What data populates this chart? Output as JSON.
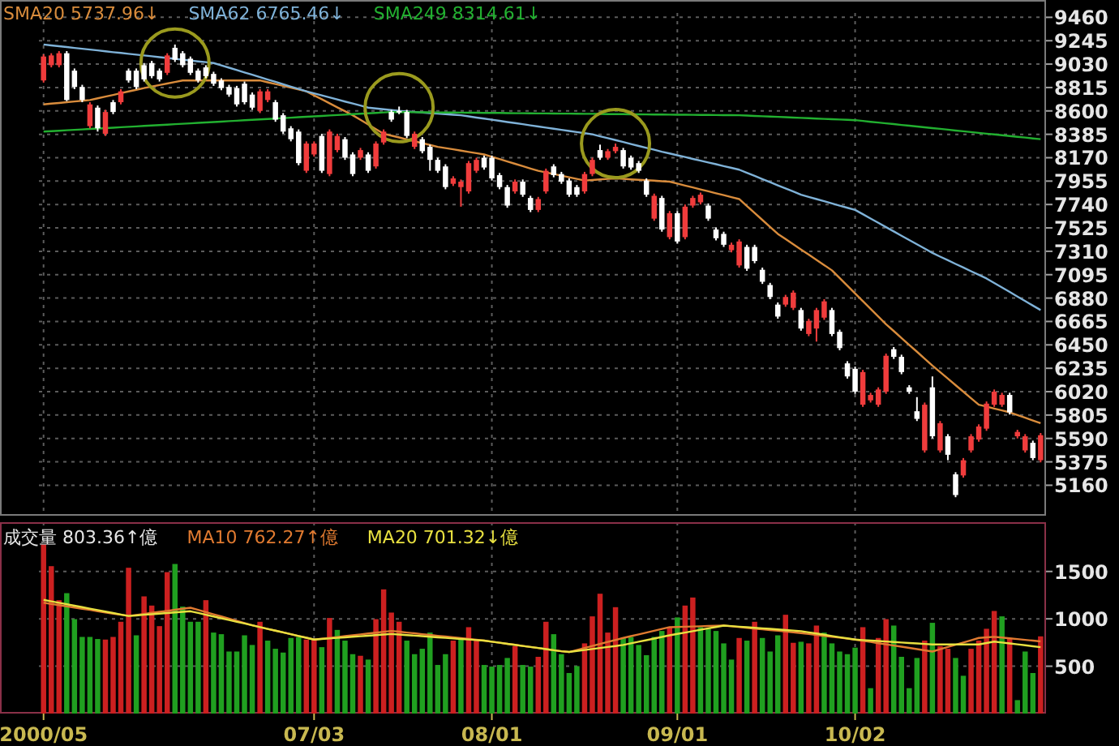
{
  "chart_data": [
    {
      "type": "candlestick",
      "tick_labels": "y",
      "grid": true,
      "legend": "top left",
      "ylim": [
        4880,
        9500
      ],
      "yticks": [
        5160,
        5375,
        5590,
        5805,
        6020,
        6235,
        6450,
        6665,
        6880,
        7095,
        7310,
        7525,
        7740,
        7955,
        8170,
        8385,
        8600,
        8815,
        9030,
        9245,
        9460
      ],
      "categories": [
        null,
        null,
        null,
        null,
        null,
        null,
        null,
        null,
        null,
        null,
        null,
        null,
        null,
        null,
        null,
        null,
        null,
        null,
        null,
        null,
        null,
        null,
        null,
        null,
        null,
        null,
        null,
        null,
        null,
        null,
        null,
        null,
        null,
        null,
        null,
        null,
        null,
        null,
        null,
        null,
        null,
        null,
        null,
        null,
        null,
        null,
        null,
        null,
        null,
        null,
        null,
        null,
        null,
        null,
        null,
        null,
        null,
        null,
        null,
        null,
        null,
        null,
        null,
        null,
        null,
        null,
        null,
        null,
        null,
        null,
        null,
        null,
        null,
        null,
        null,
        null,
        null,
        null,
        null,
        null,
        null,
        null,
        null,
        null,
        null,
        null,
        null,
        null,
        null,
        null,
        null,
        null,
        null,
        null,
        null,
        null,
        null,
        null,
        null,
        null,
        null,
        null,
        null,
        null,
        null,
        null,
        null,
        null,
        null,
        null,
        null,
        null,
        null,
        null,
        null,
        null,
        null,
        null,
        null,
        null,
        null,
        null,
        null,
        null,
        null,
        null,
        null,
        null,
        null,
        null
      ],
      "ohlc": [
        [
          8880,
          9120,
          8860,
          9100
        ],
        [
          9020,
          9130,
          9000,
          9110
        ],
        [
          9020,
          9150,
          9000,
          9130
        ],
        [
          9130,
          9150,
          8690,
          8700
        ],
        [
          8970,
          8990,
          8800,
          8820
        ],
        [
          8820,
          8840,
          8680,
          8700
        ],
        [
          8460,
          8680,
          8440,
          8660
        ],
        [
          8630,
          8650,
          8410,
          8440
        ],
        [
          8390,
          8610,
          8370,
          8590
        ],
        [
          8680,
          8700,
          8570,
          8590
        ],
        [
          8680,
          8800,
          8660,
          8780
        ],
        [
          8970,
          8990,
          8860,
          8880
        ],
        [
          8970,
          8990,
          8800,
          8820
        ],
        [
          9020,
          9040,
          8870,
          8890
        ],
        [
          9040,
          9060,
          8900,
          8920
        ],
        [
          8970,
          8990,
          8870,
          8890
        ],
        [
          8950,
          9130,
          8930,
          9110
        ],
        [
          9180,
          9210,
          9050,
          9070
        ],
        [
          9130,
          9150,
          9000,
          9020
        ],
        [
          9080,
          9100,
          8930,
          8950
        ],
        [
          8970,
          8990,
          8860,
          8880
        ],
        [
          9000,
          9020,
          8900,
          8920
        ],
        [
          8940,
          8960,
          8830,
          8850
        ],
        [
          8880,
          8900,
          8790,
          8810
        ],
        [
          8820,
          8840,
          8730,
          8750
        ],
        [
          8810,
          8830,
          8640,
          8660
        ],
        [
          8850,
          8870,
          8660,
          8680
        ],
        [
          8750,
          8770,
          8610,
          8630
        ],
        [
          8600,
          8800,
          8580,
          8780
        ],
        [
          8700,
          8800,
          8680,
          8780
        ],
        [
          8680,
          8700,
          8500,
          8520
        ],
        [
          8560,
          8580,
          8390,
          8410
        ],
        [
          8440,
          8460,
          8320,
          8340
        ],
        [
          8410,
          8430,
          8100,
          8120
        ],
        [
          8050,
          8320,
          8030,
          8300
        ],
        [
          8200,
          8320,
          8180,
          8300
        ],
        [
          8370,
          8390,
          8030,
          8050
        ],
        [
          8020,
          8430,
          8000,
          8410
        ],
        [
          8240,
          8390,
          8220,
          8370
        ],
        [
          8340,
          8360,
          8150,
          8170
        ],
        [
          8200,
          8220,
          8000,
          8020
        ],
        [
          8170,
          8260,
          8150,
          8240
        ],
        [
          8200,
          8220,
          8030,
          8050
        ],
        [
          8090,
          8320,
          8070,
          8300
        ],
        [
          8310,
          8430,
          8290,
          8410
        ],
        [
          8590,
          8610,
          8500,
          8520
        ],
        [
          8600,
          8640,
          8570,
          8590
        ],
        [
          8590,
          8610,
          8350,
          8370
        ],
        [
          8270,
          8410,
          8250,
          8390
        ],
        [
          8340,
          8360,
          8210,
          8230
        ],
        [
          8270,
          8290,
          8050,
          8150
        ],
        [
          8150,
          8170,
          8030,
          8050
        ],
        [
          8090,
          8110,
          7880,
          7900
        ],
        [
          7930,
          8000,
          7910,
          7980
        ],
        [
          7900,
          7970,
          7720,
          7950
        ],
        [
          7860,
          8140,
          7840,
          8120
        ],
        [
          8050,
          8170,
          8030,
          8150
        ],
        [
          8170,
          8190,
          8060,
          8080
        ],
        [
          8170,
          8190,
          7960,
          7980
        ],
        [
          8010,
          8030,
          7880,
          7900
        ],
        [
          7900,
          7920,
          7710,
          7730
        ],
        [
          7860,
          7970,
          7840,
          7950
        ],
        [
          7950,
          7970,
          7810,
          7830
        ],
        [
          7800,
          7820,
          7670,
          7690
        ],
        [
          7690,
          7810,
          7670,
          7790
        ],
        [
          7860,
          8070,
          7840,
          8050
        ],
        [
          8090,
          8110,
          7990,
          8010
        ],
        [
          8020,
          8040,
          7930,
          7950
        ],
        [
          7960,
          7980,
          7810,
          7830
        ],
        [
          7900,
          7920,
          7810,
          7830
        ],
        [
          7860,
          8040,
          7840,
          8020
        ],
        [
          8020,
          8170,
          8000,
          8150
        ],
        [
          8240,
          8290,
          8150,
          8170
        ],
        [
          8170,
          8250,
          8150,
          8230
        ],
        [
          8230,
          8300,
          8210,
          8270
        ],
        [
          8240,
          8260,
          8070,
          8090
        ],
        [
          8170,
          8190,
          8060,
          8080
        ],
        [
          8120,
          8140,
          8030,
          8050
        ],
        [
          7960,
          7980,
          7810,
          7830
        ],
        [
          7610,
          7840,
          7590,
          7820
        ],
        [
          7800,
          7820,
          7490,
          7510
        ],
        [
          7440,
          7680,
          7420,
          7660
        ],
        [
          7660,
          7680,
          7380,
          7400
        ],
        [
          7440,
          7740,
          7420,
          7720
        ],
        [
          7730,
          7820,
          7710,
          7800
        ],
        [
          7760,
          7850,
          7740,
          7830
        ],
        [
          7730,
          7750,
          7590,
          7610
        ],
        [
          7510,
          7530,
          7410,
          7430
        ],
        [
          7470,
          7490,
          7350,
          7370
        ],
        [
          7320,
          7390,
          7300,
          7370
        ],
        [
          7180,
          7420,
          7160,
          7400
        ],
        [
          7350,
          7370,
          7130,
          7150
        ],
        [
          7350,
          7370,
          7200,
          7220
        ],
        [
          7140,
          7160,
          7010,
          7030
        ],
        [
          7000,
          7020,
          6870,
          6890
        ],
        [
          6820,
          6840,
          6690,
          6710
        ],
        [
          6820,
          6910,
          6800,
          6890
        ],
        [
          6790,
          6950,
          6770,
          6930
        ],
        [
          6770,
          6790,
          6580,
          6600
        ],
        [
          6550,
          6690,
          6530,
          6670
        ],
        [
          6600,
          6790,
          6480,
          6770
        ],
        [
          6700,
          6870,
          6680,
          6850
        ],
        [
          6770,
          6790,
          6530,
          6550
        ],
        [
          6570,
          6590,
          6400,
          6420
        ],
        [
          6280,
          6300,
          6140,
          6160
        ],
        [
          6230,
          6250,
          6000,
          6020
        ],
        [
          5900,
          6220,
          5880,
          6200
        ],
        [
          5940,
          6010,
          5920,
          5990
        ],
        [
          5900,
          6060,
          5880,
          6040
        ],
        [
          6020,
          6370,
          6000,
          6350
        ],
        [
          6410,
          6430,
          6320,
          6340
        ],
        [
          6340,
          6360,
          6180,
          6200
        ],
        [
          6060,
          6080,
          6000,
          6020
        ],
        [
          5840,
          5970,
          5750,
          5770
        ],
        [
          5480,
          5920,
          5460,
          5900
        ],
        [
          6060,
          6160,
          5590,
          5610
        ],
        [
          5480,
          5750,
          5460,
          5730
        ],
        [
          5610,
          5630,
          5390,
          5440
        ],
        [
          5260,
          5280,
          5050,
          5070
        ],
        [
          5250,
          5410,
          5230,
          5390
        ],
        [
          5480,
          5630,
          5460,
          5610
        ],
        [
          5580,
          5720,
          5560,
          5700
        ],
        [
          5680,
          5930,
          5660,
          5910
        ],
        [
          5900,
          6040,
          5880,
          6020
        ],
        [
          5900,
          6010,
          5880,
          5990
        ],
        [
          5990,
          6010,
          5810,
          5830
        ],
        [
          5610,
          5670,
          5590,
          5650
        ],
        [
          5480,
          5630,
          5460,
          5610
        ],
        [
          5550,
          5570,
          5390,
          5410
        ],
        [
          5390,
          5640,
          5370,
          5620
        ]
      ],
      "colors": [
        "#f03c3c",
        "#f03c3c",
        "#f03c3c",
        "#ffffff",
        "#ffffff",
        "#ffffff",
        "#f03c3c",
        "#ffffff",
        "#f03c3c",
        "#ffffff",
        "#f03c3c",
        "#ffffff",
        "#ffffff",
        "#ffffff",
        "#ffffff",
        "#ffffff",
        "#f03c3c",
        "#ffffff",
        "#ffffff",
        "#ffffff",
        "#ffffff",
        "#ffffff",
        "#ffffff",
        "#ffffff",
        "#ffffff",
        "#ffffff",
        "#ffffff",
        "#ffffff",
        "#f03c3c",
        "#f03c3c",
        "#ffffff",
        "#ffffff",
        "#ffffff",
        "#ffffff",
        "#f03c3c",
        "#f03c3c",
        "#ffffff",
        "#f03c3c",
        "#f03c3c",
        "#ffffff",
        "#ffffff",
        "#f03c3c",
        "#ffffff",
        "#f03c3c",
        "#f03c3c",
        "#ffffff",
        "#ffffff",
        "#ffffff",
        "#f03c3c",
        "#ffffff",
        "#ffffff",
        "#ffffff",
        "#ffffff",
        "#f03c3c",
        "#f03c3c",
        "#f03c3c",
        "#f03c3c",
        "#ffffff",
        "#ffffff",
        "#ffffff",
        "#ffffff",
        "#f03c3c",
        "#ffffff",
        "#ffffff",
        "#f03c3c",
        "#f03c3c",
        "#ffffff",
        "#ffffff",
        "#ffffff",
        "#ffffff",
        "#f03c3c",
        "#f03c3c",
        "#ffffff",
        "#f03c3c",
        "#f03c3c",
        "#ffffff",
        "#ffffff",
        "#ffffff",
        "#ffffff",
        "#f03c3c",
        "#ffffff",
        "#f03c3c",
        "#ffffff",
        "#f03c3c",
        "#f03c3c",
        "#f03c3c",
        "#ffffff",
        "#ffffff",
        "#ffffff",
        "#f03c3c",
        "#f03c3c",
        "#ffffff",
        "#ffffff",
        "#ffffff",
        "#ffffff",
        "#ffffff",
        "#f03c3c",
        "#f03c3c",
        "#ffffff",
        "#f03c3c",
        "#f03c3c",
        "#f03c3c",
        "#ffffff",
        "#ffffff",
        "#ffffff",
        "#ffffff",
        "#f03c3c",
        "#f03c3c",
        "#f03c3c",
        "#f03c3c",
        "#ffffff",
        "#ffffff",
        "#ffffff",
        "#ffffff",
        "#f03c3c",
        "#ffffff",
        "#f03c3c",
        "#ffffff",
        "#ffffff",
        "#f03c3c",
        "#f03c3c",
        "#f03c3c",
        "#f03c3c",
        "#f03c3c",
        "#f03c3c",
        "#ffffff",
        "#f03c3c",
        "#f03c3c",
        "#ffffff",
        "#f03c3c"
      ],
      "series": [
        {
          "name": "SMA20 5737.96↓",
          "type": "line",
          "color": "#d98c3c",
          "values": [
            8660,
            8667,
            8673,
            8680,
            8687,
            8693,
            8700,
            8716,
            8731,
            8747,
            8763,
            8779,
            8794,
            8810,
            8824,
            8838,
            8852,
            8866,
            8880,
            8880,
            8880,
            8880,
            8880,
            8880,
            8880,
            8880,
            8880,
            8880,
            8880,
            8863,
            8847,
            8830,
            8813,
            8797,
            8780,
            8743,
            8707,
            8670,
            8633,
            8597,
            8560,
            8518,
            8475,
            8433,
            8390,
            8373,
            8356,
            8339,
            8321,
            8304,
            8287,
            8270,
            8258,
            8247,
            8235,
            8223,
            8212,
            8200,
            8179,
            8157,
            8136,
            8114,
            8093,
            8071,
            8050,
            8035,
            8020,
            8005,
            7990,
            7975,
            7960,
            7965,
            7970,
            7975,
            7980,
            7976,
            7971,
            7967,
            7963,
            7959,
            7954,
            7950,
            7932,
            7914,
            7897,
            7879,
            7861,
            7843,
            7826,
            7808,
            7790,
            7726,
            7662,
            7598,
            7534,
            7470,
            7422,
            7374,
            7326,
            7279,
            7231,
            7183,
            7135,
            7064,
            6994,
            6923,
            6852,
            6781,
            6711,
            6640,
            6577,
            6513,
            6450,
            6387,
            6323,
            6260,
            6200,
            6140,
            6080,
            6020,
            5960,
            5900,
            5883,
            5865,
            5848,
            5830,
            5805,
            5780,
            5755,
            5730
          ]
        },
        {
          "name": "SMA62 6765.46↓",
          "type": "line",
          "color": "#7fb2d8",
          "values": [
            9210,
            9202,
            9195,
            9187,
            9179,
            9171,
            9164,
            9156,
            9148,
            9140,
            9133,
            9125,
            9117,
            9110,
            9102,
            9094,
            9086,
            9079,
            9071,
            9063,
            9055,
            9048,
            9040,
            9018,
            8997,
            8975,
            8953,
            8932,
            8910,
            8888,
            8867,
            8845,
            8823,
            8802,
            8780,
            8761,
            8743,
            8724,
            8705,
            8686,
            8668,
            8649,
            8630,
            8623,
            8615,
            8608,
            8600,
            8595,
            8590,
            8585,
            8580,
            8575,
            8570,
            8565,
            8560,
            8550,
            8539,
            8529,
            8519,
            8509,
            8498,
            8488,
            8478,
            8467,
            8457,
            8447,
            8436,
            8426,
            8416,
            8406,
            8395,
            8385,
            8367,
            8349,
            8332,
            8314,
            8296,
            8278,
            8260,
            8243,
            8225,
            8209,
            8192,
            8176,
            8159,
            8143,
            8126,
            8110,
            8093,
            8077,
            8060,
            8031,
            8003,
            7974,
            7945,
            7916,
            7888,
            7859,
            7830,
            7810,
            7790,
            7770,
            7750,
            7730,
            7710,
            7690,
            7651,
            7611,
            7572,
            7532,
            7493,
            7453,
            7414,
            7374,
            7335,
            7295,
            7261,
            7228,
            7194,
            7161,
            7127,
            7094,
            7060,
            7019,
            6977,
            6936,
            6894,
            6853,
            6811,
            6770
          ]
        },
        {
          "name": "SMA249 8314.61↓",
          "type": "line",
          "color": "#22b030",
          "values": [
            8410,
            8414,
            8418,
            8422,
            8426,
            8430,
            8434,
            8438,
            8442,
            8446,
            8450,
            8454,
            8458,
            8462,
            8466,
            8470,
            8474,
            8478,
            8482,
            8486,
            8490,
            8494,
            8498,
            8502,
            8506,
            8510,
            8514,
            8518,
            8522,
            8526,
            8530,
            8534,
            8538,
            8542,
            8546,
            8550,
            8554,
            8558,
            8562,
            8566,
            8570,
            8574,
            8578,
            8582,
            8586,
            8590,
            8589,
            8589,
            8588,
            8587,
            8587,
            8586,
            8585,
            8585,
            8584,
            8583,
            8583,
            8582,
            8581,
            8581,
            8580,
            8579,
            8579,
            8578,
            8577,
            8577,
            8576,
            8575,
            8575,
            8574,
            8573,
            8573,
            8572,
            8571,
            8571,
            8570,
            8569,
            8569,
            8568,
            8567,
            8567,
            8566,
            8565,
            8565,
            8564,
            8563,
            8563,
            8562,
            8561,
            8561,
            8560,
            8557,
            8554,
            8551,
            8548,
            8545,
            8542,
            8539,
            8536,
            8533,
            8530,
            8527,
            8524,
            8521,
            8518,
            8515,
            8508,
            8500,
            8493,
            8486,
            8479,
            8471,
            8464,
            8457,
            8449,
            8442,
            8435,
            8428,
            8420,
            8413,
            8406,
            8398,
            8391,
            8384,
            8377,
            8369,
            8362,
            8355,
            8347,
            8340
          ]
        },
        {
          "type": "scatter",
          "marker": "circle",
          "color": "#9a9a1e",
          "values": [
            null,
            null,
            null,
            null,
            null,
            null,
            null,
            null,
            null,
            null,
            null,
            null,
            null,
            null,
            null,
            null,
            null,
            9040,
            null,
            null,
            null,
            null,
            null,
            null,
            null,
            null,
            null,
            null,
            null,
            null,
            null,
            null,
            null,
            null,
            null,
            null,
            null,
            null,
            null,
            null,
            null,
            null,
            null,
            null,
            null,
            null,
            8630,
            null,
            null,
            null,
            null,
            null,
            null,
            null,
            null,
            null,
            null,
            null,
            null,
            null,
            null,
            null,
            null,
            null,
            null,
            null,
            null,
            null,
            null,
            null,
            null,
            null,
            null,
            null,
            8300,
            null,
            null,
            null,
            null,
            null,
            null,
            null,
            null,
            null,
            null,
            null,
            null,
            null,
            null,
            null,
            null,
            null,
            null,
            null,
            null,
            null,
            null,
            null,
            null,
            null,
            null,
            null,
            null,
            null,
            null,
            null,
            null,
            null,
            null,
            null,
            null,
            null,
            null,
            null,
            null,
            null,
            null,
            null,
            null,
            null,
            null,
            null,
            null,
            null,
            null,
            null,
            null,
            null,
            null,
            null
          ]
        }
      ]
    },
    {
      "type": "bar",
      "grid": true,
      "legend": "top left",
      "ylim": [
        0,
        2020
      ],
      "yticks": [
        500,
        1000,
        1500
      ],
      "categories": [
        "2000/05",
        null,
        null,
        null,
        null,
        null,
        null,
        null,
        null,
        null,
        null,
        null,
        null,
        null,
        null,
        null,
        null,
        null,
        null,
        null,
        null,
        null,
        null,
        null,
        null,
        null,
        null,
        null,
        null,
        null,
        null,
        null,
        null,
        null,
        null,
        "07/03",
        null,
        null,
        null,
        null,
        null,
        null,
        null,
        null,
        null,
        null,
        null,
        null,
        null,
        null,
        null,
        null,
        null,
        null,
        null,
        null,
        null,
        null,
        "08/01",
        null,
        null,
        null,
        null,
        null,
        null,
        null,
        null,
        null,
        null,
        null,
        null,
        null,
        null,
        null,
        null,
        null,
        null,
        null,
        null,
        null,
        null,
        null,
        "09/01",
        null,
        null,
        null,
        null,
        null,
        null,
        null,
        null,
        null,
        null,
        null,
        null,
        null,
        null,
        null,
        null,
        null,
        null,
        null,
        null,
        null,
        null,
        "10/02",
        null,
        null,
        null,
        null,
        null,
        null,
        null,
        null,
        null,
        null,
        null,
        null,
        null,
        null,
        null,
        null,
        null,
        null,
        null,
        null,
        null,
        null,
        null,
        null
      ],
      "series": [
        {
          "name": "成交量 803.36↑億",
          "type": "bar",
          "values": [
            1784,
            1556,
            1197,
            1271,
            997,
            809,
            809,
            787,
            781,
            809,
            969,
            1539,
            826,
            1237,
            1140,
            923,
            1493,
            1579,
            1129,
            969,
            969,
            1197,
            855,
            838,
            655,
            655,
            826,
            724,
            969,
            770,
            684,
            644,
            798,
            809,
            781,
            781,
            701,
            1009,
            883,
            770,
            627,
            610,
            570,
            997,
            1311,
            1066,
            969,
            770,
            627,
            684,
            855,
            513,
            627,
            770,
            798,
            912,
            770,
            513,
            496,
            513,
            587,
            712,
            513,
            496,
            599,
            969,
            838,
            627,
            428,
            501,
            741,
            1026,
            1265,
            855,
            1123,
            798,
            809,
            724,
            616,
            809,
            872,
            912,
            1015,
            1140,
            1225,
            912,
            895,
            872,
            741,
            570,
            798,
            770,
            969,
            798,
            655,
            826,
            1043,
            747,
            758,
            741,
            929,
            855,
            741,
            655,
            627,
            696,
            912,
            268,
            798,
            997,
            929,
            599,
            268,
            587,
            770,
            958,
            712,
            684,
            587,
            399,
            684,
            770,
            895,
            1083,
            1026,
            798,
            142,
            655,
            428,
            815
          ],
          "colors": [
            "#cc2020",
            "#cc2020",
            "#cc2020",
            "#20a020",
            "#20a020",
            "#20a020",
            "#20a020",
            "#20a020",
            "#cc2020",
            "#cc2020",
            "#cc2020",
            "#cc2020",
            "#20a020",
            "#cc2020",
            "#cc2020",
            "#cc2020",
            "#cc2020",
            "#20a020",
            "#20a020",
            "#20a020",
            "#20a020",
            "#cc2020",
            "#20a020",
            "#20a020",
            "#20a020",
            "#20a020",
            "#20a020",
            "#20a020",
            "#cc2020",
            "#20a020",
            "#20a020",
            "#20a020",
            "#20a020",
            "#20a020",
            "#cc2020",
            "#cc2020",
            "#20a020",
            "#cc2020",
            "#20a020",
            "#20a020",
            "#20a020",
            "#cc2020",
            "#20a020",
            "#cc2020",
            "#cc2020",
            "#cc2020",
            "#cc2020",
            "#20a020",
            "#20a020",
            "#20a020",
            "#20a020",
            "#20a020",
            "#20a020",
            "#cc2020",
            "#20a020",
            "#cc2020",
            "#cc2020",
            "#20a020",
            "#20a020",
            "#20a020",
            "#20a020",
            "#cc2020",
            "#20a020",
            "#20a020",
            "#cc2020",
            "#cc2020",
            "#20a020",
            "#20a020",
            "#20a020",
            "#20a020",
            "#cc2020",
            "#cc2020",
            "#cc2020",
            "#cc2020",
            "#cc2020",
            "#20a020",
            "#20a020",
            "#20a020",
            "#20a020",
            "#20a020",
            "#20a020",
            "#cc2020",
            "#20a020",
            "#cc2020",
            "#cc2020",
            "#20a020",
            "#20a020",
            "#20a020",
            "#20a020",
            "#20a020",
            "#cc2020",
            "#20a020",
            "#cc2020",
            "#20a020",
            "#20a020",
            "#20a020",
            "#cc2020",
            "#cc2020",
            "#20a020",
            "#cc2020",
            "#cc2020",
            "#20a020",
            "#20a020",
            "#20a020",
            "#20a020",
            "#20a020",
            "#cc2020",
            "#20a020",
            "#cc2020",
            "#cc2020",
            "#20a020",
            "#20a020",
            "#20a020",
            "#20a020",
            "#cc2020",
            "#20a020",
            "#cc2020",
            "#cc2020",
            "#20a020",
            "#20a020",
            "#cc2020",
            "#cc2020",
            "#cc2020",
            "#cc2020",
            "#20a020",
            "#cc2020",
            "#20a020",
            "#20a020",
            "#20a020",
            "#cc2020"
          ]
        },
        {
          "name": "MA10 762.27↑億",
          "type": "line",
          "color": "#e07a30",
          "values": [
            1170,
            1157,
            1145,
            1132,
            1119,
            1106,
            1094,
            1081,
            1068,
            1055,
            1043,
            1030,
            1041,
            1052,
            1063,
            1074,
            1084,
            1095,
            1106,
            1117,
            1094,
            1071,
            1048,
            1025,
            1002,
            978,
            955,
            932,
            913,
            894,
            875,
            857,
            838,
            819,
            800,
            781,
            790,
            799,
            808,
            817,
            827,
            836,
            845,
            854,
            863,
            872,
            864,
            855,
            847,
            838,
            830,
            821,
            813,
            804,
            796,
            787,
            779,
            770,
            759,
            748,
            736,
            725,
            714,
            703,
            692,
            681,
            669,
            658,
            650,
            671,
            692,
            713,
            735,
            756,
            777,
            798,
            817,
            836,
            855,
            874,
            893,
            912,
            914,
            917,
            919,
            921,
            924,
            926,
            929,
            921,
            913,
            905,
            897,
            890,
            882,
            874,
            866,
            858,
            850,
            840,
            830,
            820,
            811,
            801,
            791,
            781,
            768,
            756,
            743,
            731,
            718,
            706,
            693,
            680,
            668,
            655,
            679,
            703,
            727,
            750,
            774,
            798,
            804,
            810,
            802,
            794,
            786,
            778,
            770,
            762
          ]
        },
        {
          "name": "MA20 701.32↓億",
          "type": "line",
          "color": "#e8e040",
          "values": [
            1200,
            1185,
            1169,
            1154,
            1138,
            1123,
            1107,
            1092,
            1076,
            1061,
            1045,
            1030,
            1036,
            1043,
            1049,
            1055,
            1061,
            1068,
            1074,
            1080,
            1062,
            1043,
            1025,
            1006,
            988,
            969,
            951,
            932,
            913,
            894,
            875,
            857,
            838,
            819,
            800,
            781,
            787,
            793,
            799,
            805,
            811,
            816,
            822,
            828,
            834,
            840,
            834,
            828,
            823,
            817,
            811,
            805,
            799,
            793,
            788,
            782,
            776,
            770,
            759,
            748,
            736,
            725,
            714,
            703,
            692,
            681,
            669,
            658,
            650,
            661,
            671,
            682,
            692,
            703,
            713,
            724,
            741,
            758,
            775,
            792,
            809,
            826,
            841,
            855,
            870,
            885,
            900,
            914,
            929,
            923,
            917,
            911,
            905,
            900,
            894,
            888,
            882,
            876,
            870,
            857,
            845,
            832,
            819,
            806,
            794,
            781,
            776,
            771,
            766,
            761,
            756,
            750,
            745,
            740,
            735,
            730,
            730,
            730,
            730,
            730,
            730,
            730,
            745,
            760,
            750,
            740,
            731,
            721,
            711,
            701
          ]
        }
      ]
    }
  ]
}
